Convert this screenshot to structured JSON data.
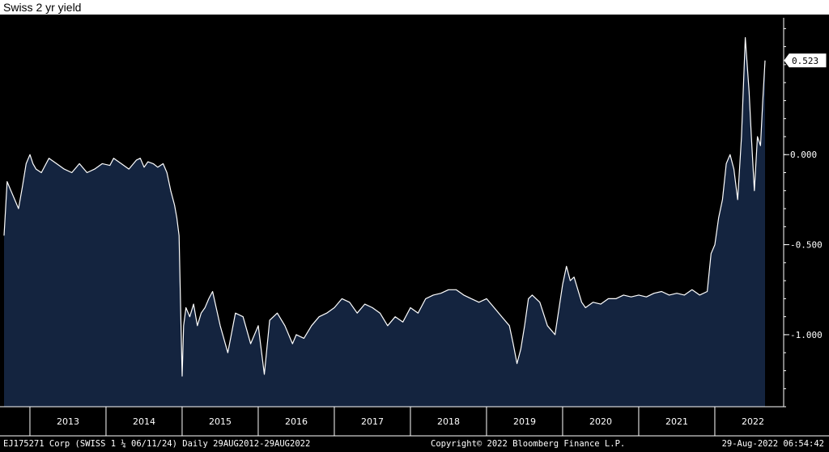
{
  "chart_data": {
    "type": "area",
    "title": "Swiss 2 yr yield",
    "ylim": [
      -1.4,
      0.76
    ],
    "y_ticks": [
      0.0,
      -0.5,
      -1.0
    ],
    "y_tick_labels": [
      "0.000",
      "-0.500",
      "-1.000"
    ],
    "last_value_label": "0.523",
    "last_value": 0.523,
    "x_range": [
      2012.66,
      2022.66
    ],
    "x_year_labels": [
      "2013",
      "2014",
      "2015",
      "2016",
      "2017",
      "2018",
      "2019",
      "2020",
      "2021",
      "2022"
    ],
    "x": [
      2012.66,
      2012.7,
      2012.75,
      2012.8,
      2012.85,
      2012.9,
      2012.95,
      2013.0,
      2013.04,
      2013.08,
      2013.15,
      2013.25,
      2013.35,
      2013.45,
      2013.55,
      2013.65,
      2013.75,
      2013.85,
      2013.95,
      2014.05,
      2014.1,
      2014.2,
      2014.3,
      2014.4,
      2014.45,
      2014.5,
      2014.55,
      2014.62,
      2014.68,
      2014.75,
      2014.8,
      2014.85,
      2014.9,
      2014.93,
      2014.96,
      2014.98,
      2015.0,
      2015.02,
      2015.05,
      2015.1,
      2015.15,
      2015.2,
      2015.25,
      2015.3,
      2015.35,
      2015.4,
      2015.5,
      2015.6,
      2015.7,
      2015.8,
      2015.9,
      2016.0,
      2016.08,
      2016.15,
      2016.25,
      2016.35,
      2016.45,
      2016.5,
      2016.6,
      2016.7,
      2016.8,
      2016.9,
      2017.0,
      2017.1,
      2017.2,
      2017.3,
      2017.4,
      2017.5,
      2017.6,
      2017.7,
      2017.8,
      2017.9,
      2018.0,
      2018.1,
      2018.2,
      2018.3,
      2018.4,
      2018.5,
      2018.6,
      2018.7,
      2018.8,
      2018.9,
      2019.0,
      2019.1,
      2019.2,
      2019.3,
      2019.35,
      2019.4,
      2019.45,
      2019.5,
      2019.55,
      2019.6,
      2019.7,
      2019.8,
      2019.9,
      2020.0,
      2020.05,
      2020.1,
      2020.15,
      2020.2,
      2020.25,
      2020.3,
      2020.4,
      2020.5,
      2020.6,
      2020.7,
      2020.8,
      2020.9,
      2021.0,
      2021.1,
      2021.2,
      2021.3,
      2021.4,
      2021.5,
      2021.6,
      2021.7,
      2021.8,
      2021.9,
      2021.95,
      2022.0,
      2022.05,
      2022.1,
      2022.15,
      2022.2,
      2022.25,
      2022.3,
      2022.35,
      2022.4,
      2022.45,
      2022.48,
      2022.52,
      2022.56,
      2022.6,
      2022.63,
      2022.66
    ],
    "y": [
      -0.45,
      -0.15,
      -0.2,
      -0.25,
      -0.3,
      -0.18,
      -0.05,
      0.0,
      -0.05,
      -0.08,
      -0.1,
      -0.02,
      -0.05,
      -0.08,
      -0.1,
      -0.05,
      -0.1,
      -0.08,
      -0.05,
      -0.06,
      -0.02,
      -0.05,
      -0.08,
      -0.03,
      -0.02,
      -0.07,
      -0.04,
      -0.05,
      -0.07,
      -0.05,
      -0.1,
      -0.2,
      -0.28,
      -0.35,
      -0.45,
      -0.85,
      -1.23,
      -0.95,
      -0.85,
      -0.9,
      -0.83,
      -0.95,
      -0.88,
      -0.85,
      -0.8,
      -0.76,
      -0.95,
      -1.1,
      -0.88,
      -0.9,
      -1.05,
      -0.95,
      -1.22,
      -0.92,
      -0.88,
      -0.95,
      -1.05,
      -1.0,
      -1.02,
      -0.95,
      -0.9,
      -0.88,
      -0.85,
      -0.8,
      -0.82,
      -0.88,
      -0.83,
      -0.85,
      -0.88,
      -0.95,
      -0.9,
      -0.93,
      -0.85,
      -0.88,
      -0.8,
      -0.78,
      -0.77,
      -0.75,
      -0.75,
      -0.78,
      -0.8,
      -0.82,
      -0.8,
      -0.85,
      -0.9,
      -0.95,
      -1.05,
      -1.16,
      -1.08,
      -0.95,
      -0.8,
      -0.78,
      -0.82,
      -0.95,
      -1.0,
      -0.72,
      -0.62,
      -0.7,
      -0.68,
      -0.75,
      -0.82,
      -0.85,
      -0.82,
      -0.83,
      -0.8,
      -0.8,
      -0.78,
      -0.79,
      -0.78,
      -0.79,
      -0.77,
      -0.76,
      -0.78,
      -0.77,
      -0.78,
      -0.75,
      -0.78,
      -0.76,
      -0.55,
      -0.5,
      -0.35,
      -0.25,
      -0.05,
      0.0,
      -0.08,
      -0.25,
      0.1,
      0.65,
      0.35,
      0.1,
      -0.2,
      0.1,
      0.05,
      0.3,
      0.523
    ],
    "grid": false,
    "legend": "none"
  },
  "footer": {
    "left": "EJ175271 Corp (SWISS 1 ¼ 06/11/24)  Daily 29AUG2012-29AUG2022",
    "center": "Copyright© 2022 Bloomberg Finance L.P.",
    "right": "29-Aug-2022 06:54:42"
  },
  "colors": {
    "area_fill": "#14243f",
    "line": "#ffffff",
    "background": "#000000"
  }
}
